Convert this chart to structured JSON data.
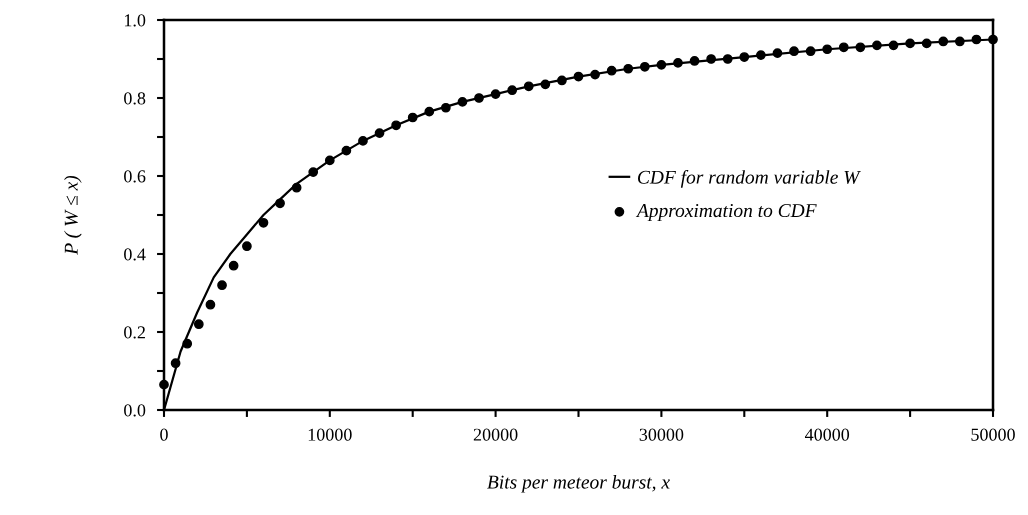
{
  "chart_data": {
    "type": "line",
    "xlabel": "Bits per meteor burst, x",
    "ylabel": "P ( W ≤ x)",
    "xlim": [
      0,
      50000
    ],
    "ylim": [
      0.0,
      1.0
    ],
    "xticks": [
      0,
      {
        "value": 5000,
        "label": null
      },
      10000,
      {
        "value": 15000,
        "label": null
      },
      20000,
      {
        "value": 25000,
        "label": null
      },
      30000,
      {
        "value": 35000,
        "label": null
      },
      40000,
      {
        "value": 45000,
        "label": null
      },
      50000
    ],
    "yticks": [
      {
        "value": 0.0,
        "label": "0.0"
      },
      {
        "value": 0.1,
        "label": null
      },
      {
        "value": 0.2,
        "label": "0.2"
      },
      {
        "value": 0.3,
        "label": null
      },
      {
        "value": 0.4,
        "label": "0.4"
      },
      {
        "value": 0.5,
        "label": null
      },
      {
        "value": 0.6,
        "label": "0.6"
      },
      {
        "value": 0.7,
        "label": null
      },
      {
        "value": 0.8,
        "label": "0.8"
      },
      {
        "value": 0.9,
        "label": null
      },
      {
        "value": 1.0,
        "label": "1.0"
      }
    ],
    "grid": false,
    "legend": "right",
    "series": [
      {
        "name": "CDF for random variable W",
        "color": "#000000",
        "marker": "none",
        "line_style": "solid",
        "x": [
          0,
          1000,
          2000,
          3000,
          4000,
          5000,
          6000,
          7000,
          8000,
          10000,
          12000,
          14000,
          16000,
          18000,
          20000,
          22000,
          25000,
          28000,
          30000,
          35000,
          40000,
          45000,
          50000
        ],
        "values": [
          0.0,
          0.15,
          0.25,
          0.34,
          0.4,
          0.45,
          0.5,
          0.54,
          0.58,
          0.64,
          0.69,
          0.73,
          0.765,
          0.79,
          0.81,
          0.83,
          0.855,
          0.875,
          0.885,
          0.905,
          0.925,
          0.94,
          0.95
        ]
      },
      {
        "name": "Approximation to CDF",
        "type": "scatter",
        "color": "#000000",
        "marker": "circle",
        "x": [
          0,
          700,
          1400,
          2100,
          2800,
          3500,
          4200,
          5000,
          6000,
          7000,
          8000,
          9000,
          10000,
          11000,
          12000,
          13000,
          14000,
          15000,
          16000,
          17000,
          18000,
          19000,
          20000,
          21000,
          22000,
          23000,
          24000,
          25000,
          26000,
          27000,
          28000,
          29000,
          30000,
          31000,
          32000,
          33000,
          34000,
          35000,
          36000,
          37000,
          38000,
          39000,
          40000,
          41000,
          42000,
          43000,
          44000,
          45000,
          46000,
          47000,
          48000,
          49000,
          50000
        ],
        "values": [
          0.065,
          0.12,
          0.17,
          0.22,
          0.27,
          0.32,
          0.37,
          0.42,
          0.48,
          0.53,
          0.57,
          0.61,
          0.64,
          0.665,
          0.69,
          0.71,
          0.73,
          0.75,
          0.765,
          0.775,
          0.79,
          0.8,
          0.81,
          0.82,
          0.83,
          0.835,
          0.845,
          0.855,
          0.86,
          0.87,
          0.875,
          0.88,
          0.885,
          0.89,
          0.895,
          0.9,
          0.9,
          0.905,
          0.91,
          0.915,
          0.92,
          0.92,
          0.925,
          0.93,
          0.93,
          0.935,
          0.935,
          0.94,
          0.94,
          0.945,
          0.945,
          0.95,
          0.95
        ]
      }
    ]
  }
}
